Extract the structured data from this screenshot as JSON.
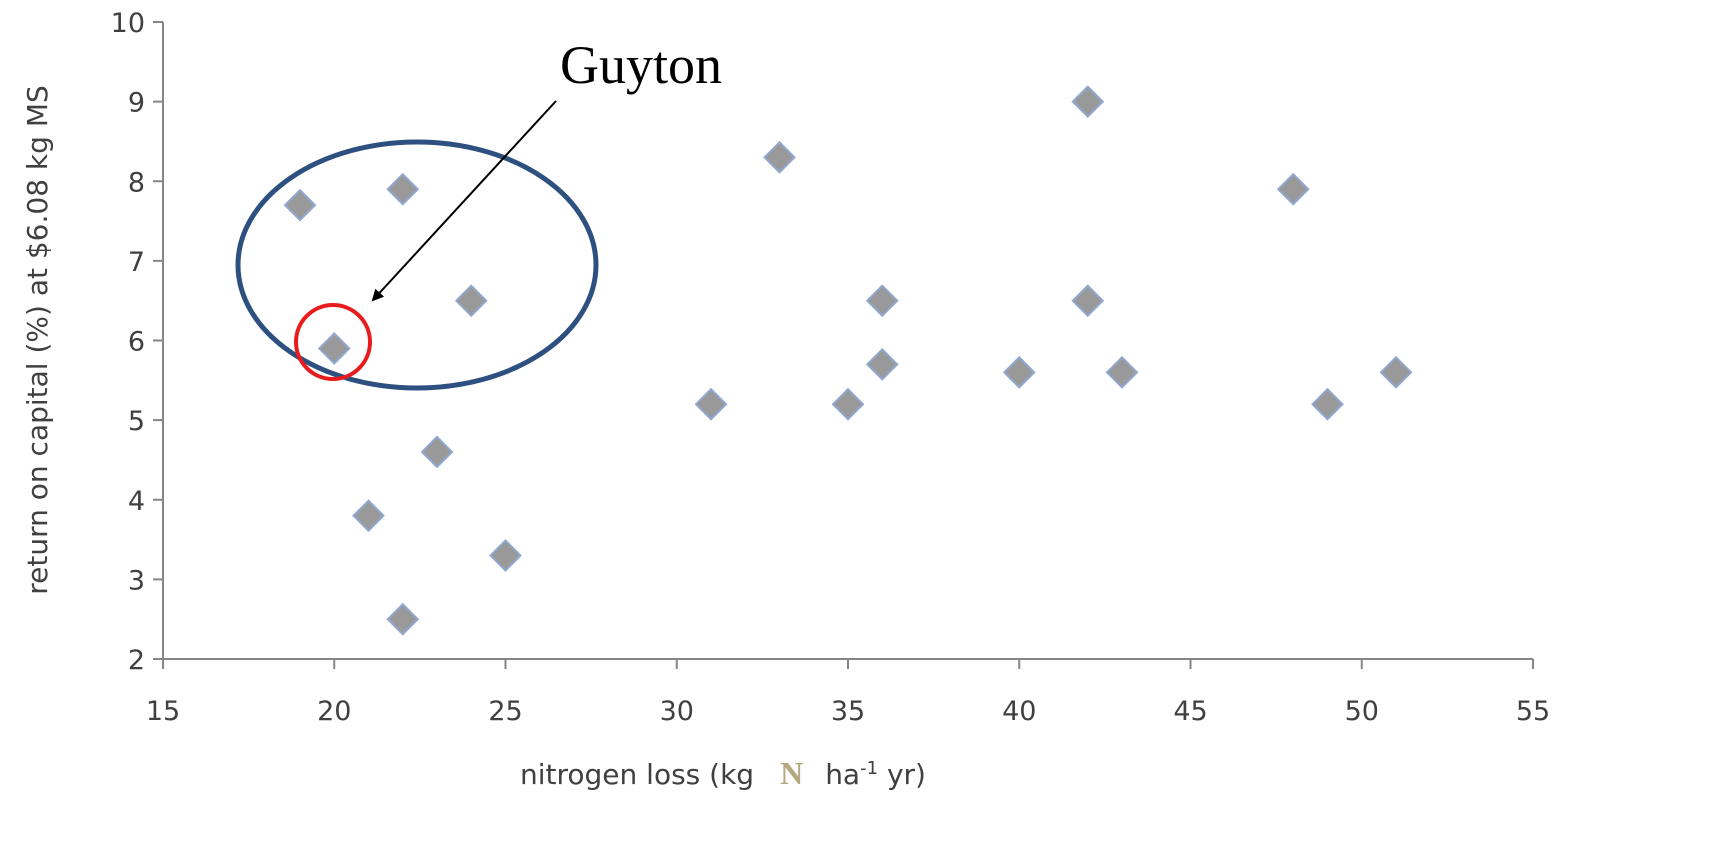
{
  "chart_data": {
    "type": "scatter",
    "title": "",
    "xlabel_parts": {
      "before": "nitrogen loss (kg",
      "n_symbol": "N",
      "after": "ha",
      "superscript": "-1",
      "end": " yr)"
    },
    "ylabel": "return on capital (%) at $6.08 kg MS",
    "xlim": [
      15,
      55
    ],
    "ylim": [
      2,
      10
    ],
    "x_ticks": [
      15,
      20,
      25,
      30,
      35,
      40,
      45,
      50,
      55
    ],
    "y_ticks": [
      2,
      3,
      4,
      5,
      6,
      7,
      8,
      9,
      10
    ],
    "grid": false,
    "points": [
      {
        "x": 19,
        "y": 7.7
      },
      {
        "x": 20,
        "y": 5.9
      },
      {
        "x": 21,
        "y": 3.8
      },
      {
        "x": 22,
        "y": 7.9
      },
      {
        "x": 22,
        "y": 2.5
      },
      {
        "x": 23,
        "y": 4.6
      },
      {
        "x": 24,
        "y": 6.5
      },
      {
        "x": 25,
        "y": 3.3
      },
      {
        "x": 31,
        "y": 5.2
      },
      {
        "x": 33,
        "y": 8.3
      },
      {
        "x": 35,
        "y": 5.2
      },
      {
        "x": 36,
        "y": 6.5
      },
      {
        "x": 36,
        "y": 5.7
      },
      {
        "x": 40,
        "y": 5.6
      },
      {
        "x": 42,
        "y": 9.0
      },
      {
        "x": 42,
        "y": 6.5
      },
      {
        "x": 43,
        "y": 5.6
      },
      {
        "x": 48,
        "y": 7.9
      },
      {
        "x": 49,
        "y": 5.2
      },
      {
        "x": 51,
        "y": 5.6
      }
    ],
    "annotation": {
      "text": "Guyton",
      "target": {
        "x": 20,
        "y": 5.9
      }
    },
    "colors": {
      "marker_fill": "#999999",
      "marker_edge": "#8FA8D0",
      "axis": "#868686",
      "tick_text": "#404040",
      "group_ellipse": "#2E5080",
      "highlight_circle": "#E81C1C",
      "arrow": "#000000",
      "n_symbol": "#B5A77F"
    }
  }
}
